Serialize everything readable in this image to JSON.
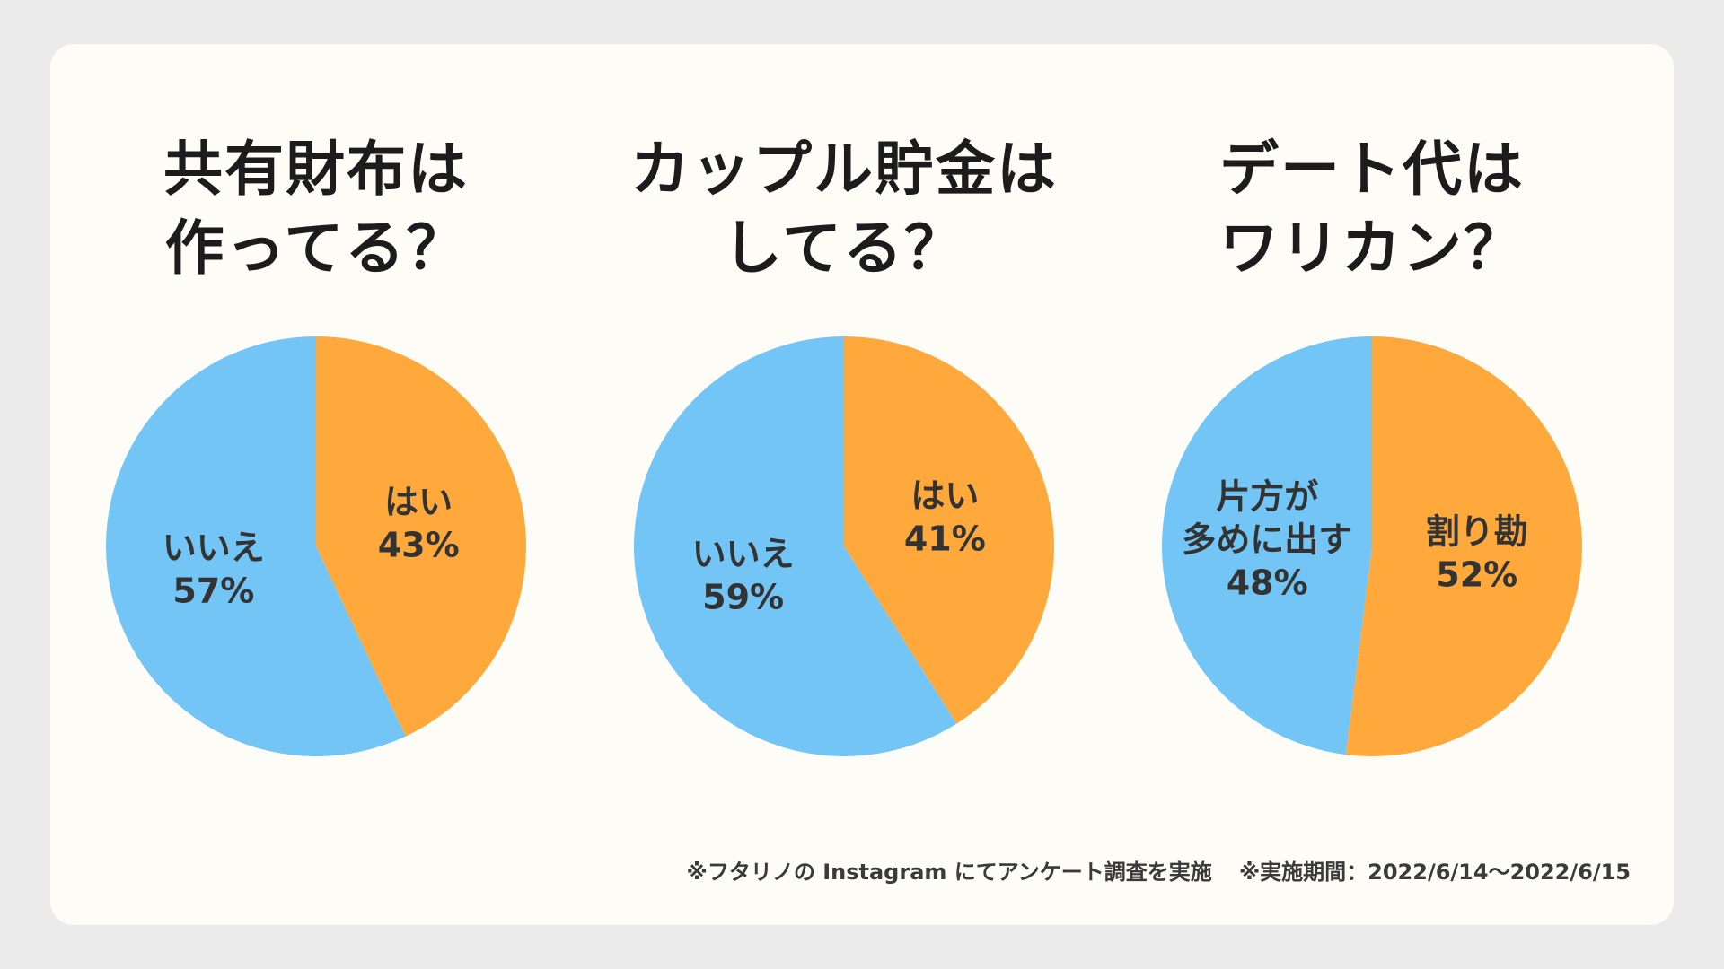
{
  "colors": {
    "blue": "#72c5f5",
    "orange": "#ffa93c"
  },
  "chart_data": [
    {
      "type": "pie",
      "title": "共有財布は\n作ってる？",
      "slices": [
        {
          "label": "はい",
          "value": 43,
          "value_label": "43%",
          "color": "#ffa93c"
        },
        {
          "label": "いいえ",
          "value": 57,
          "value_label": "57%",
          "color": "#72c5f5"
        }
      ]
    },
    {
      "type": "pie",
      "title": "カップル貯金は\nしてる？",
      "slices": [
        {
          "label": "はい",
          "value": 41,
          "value_label": "41%",
          "color": "#ffa93c"
        },
        {
          "label": "いいえ",
          "value": 59,
          "value_label": "59%",
          "color": "#72c5f5"
        }
      ]
    },
    {
      "type": "pie",
      "title": "デート代は\nワリカン？",
      "slices": [
        {
          "label": "割り勘",
          "value": 52,
          "value_label": "52%",
          "color": "#ffa93c"
        },
        {
          "label": "片方が\n多めに出す",
          "value": 48,
          "value_label": "48%",
          "color": "#72c5f5"
        }
      ]
    }
  ],
  "footnote": {
    "survey": "※フタリノの Instagram にてアンケート調査を実施",
    "period": "※実施期間：2022/6/14〜2022/6/15"
  }
}
